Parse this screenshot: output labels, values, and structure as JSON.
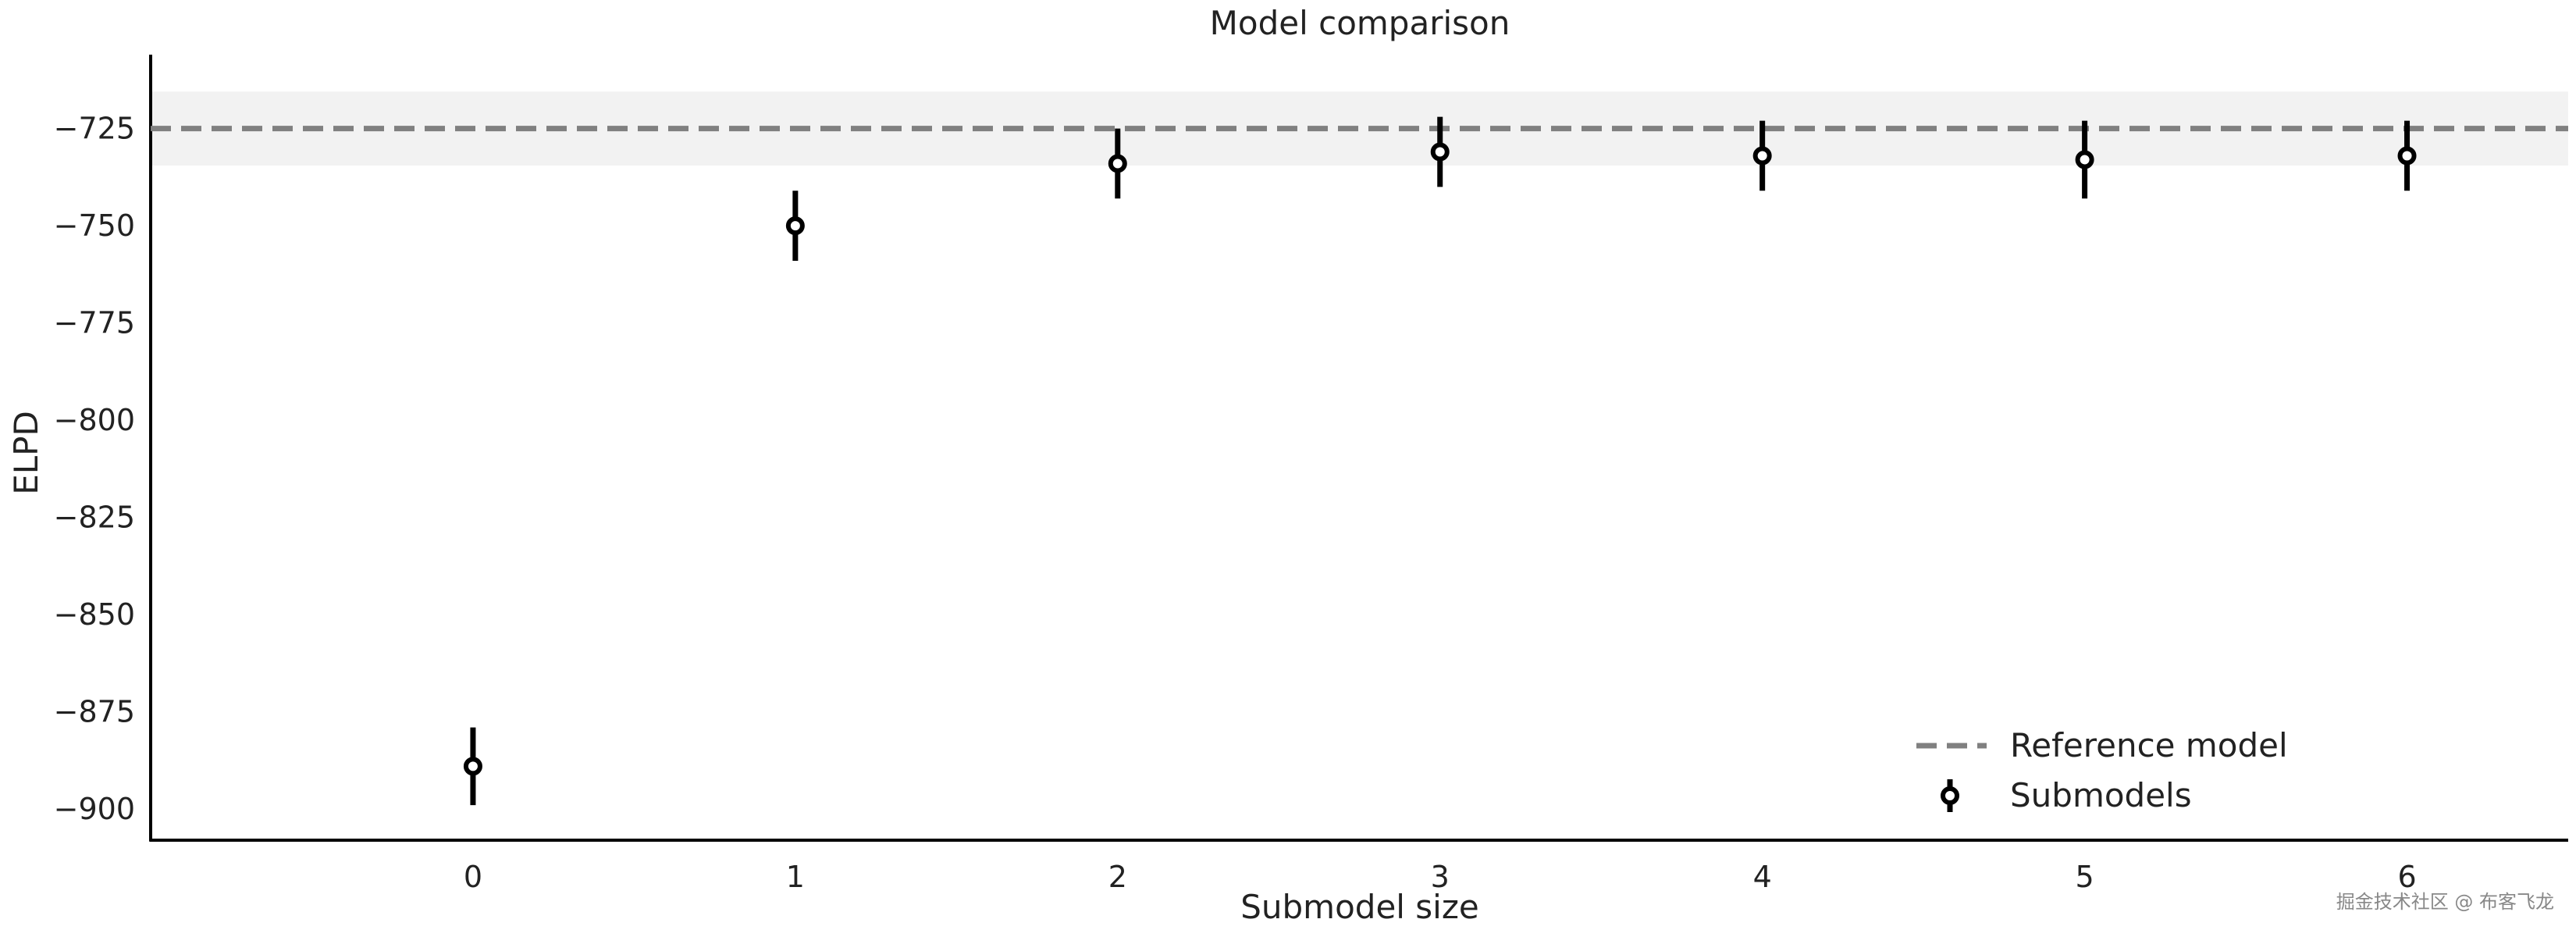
{
  "chart_data": {
    "type": "scatter",
    "title": "Model comparison",
    "xlabel": "Submodel size",
    "ylabel": "ELPD",
    "xlim": [
      -1,
      6.5
    ],
    "ylim": [
      -908,
      -706
    ],
    "x_ticks": [
      0,
      1,
      2,
      3,
      4,
      5,
      6
    ],
    "y_ticks": [
      -725,
      -750,
      -775,
      -800,
      -825,
      -850,
      -875,
      -900
    ],
    "grid": false,
    "legend_position": "lower-right",
    "reference": {
      "name": "Reference model",
      "value": -725,
      "band": [
        -734.5,
        -715.5
      ],
      "color": "#808080",
      "band_color": "#f2f2f2"
    },
    "series": [
      {
        "name": "Submodels",
        "color": "#000000",
        "x": [
          0,
          1,
          2,
          3,
          4,
          5,
          6
        ],
        "y": [
          -889,
          -750,
          -734,
          -731,
          -732,
          -733,
          -732
        ],
        "err": [
          10,
          9,
          9,
          9,
          9,
          10,
          9
        ]
      }
    ]
  },
  "watermark": "掘金技术社区 @ 布客飞龙"
}
